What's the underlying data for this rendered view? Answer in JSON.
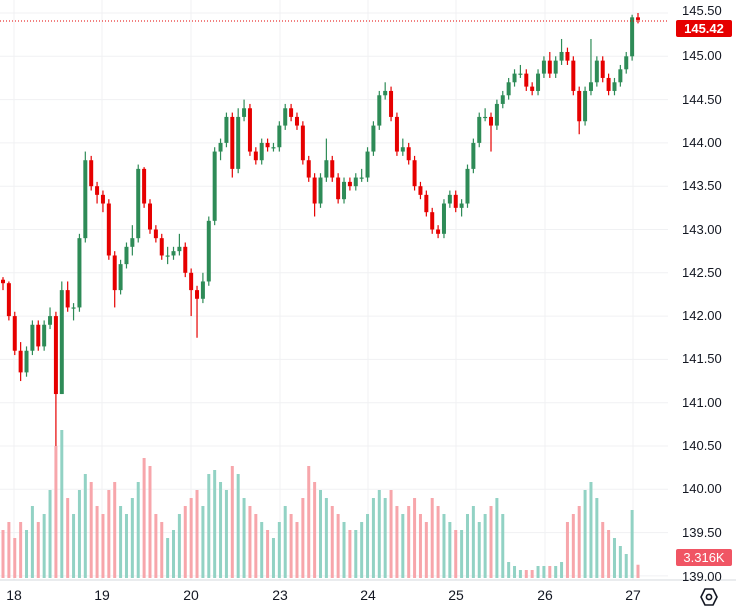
{
  "chart_data": {
    "type": "candlestick",
    "price_axis": {
      "ticks": [
        "145.50",
        "145.00",
        "144.50",
        "144.00",
        "143.50",
        "143.00",
        "142.50",
        "142.00",
        "141.50",
        "141.00",
        "140.50",
        "140.00",
        "139.50",
        "139.00"
      ],
      "ylim": [
        139.0,
        145.5
      ]
    },
    "date_axis": {
      "ticks": [
        "18",
        "19",
        "20",
        "23",
        "24",
        "25",
        "26",
        "27"
      ]
    },
    "last_price_label": "145.42",
    "last_volume_label": "3.316K",
    "grid": true,
    "colors": {
      "up": "#2e8b57",
      "down": "#e60000",
      "volume_up": "#92d2c4",
      "volume_down": "#f7a6ab",
      "price_badge": "#e60000",
      "volume_badge": "#f05564"
    },
    "candles_ohlcv": [
      [
        142.42,
        142.45,
        142.3,
        142.38,
        12
      ],
      [
        142.38,
        142.4,
        141.95,
        142.0,
        14
      ],
      [
        142.0,
        142.05,
        141.55,
        141.6,
        10
      ],
      [
        141.6,
        141.7,
        141.25,
        141.35,
        14
      ],
      [
        141.35,
        141.65,
        141.3,
        141.6,
        12
      ],
      [
        141.6,
        141.95,
        141.55,
        141.9,
        18
      ],
      [
        141.9,
        141.95,
        141.6,
        141.65,
        14
      ],
      [
        141.65,
        141.95,
        141.6,
        141.9,
        16
      ],
      [
        141.9,
        142.1,
        141.85,
        142.0,
        22
      ],
      [
        142.0,
        142.05,
        140.5,
        141.1,
        33
      ],
      [
        141.1,
        142.4,
        141.1,
        142.3,
        37
      ],
      [
        142.3,
        142.4,
        142.05,
        142.1,
        20
      ],
      [
        142.1,
        142.15,
        141.95,
        142.1,
        16
      ],
      [
        142.1,
        142.95,
        142.05,
        142.9,
        22
      ],
      [
        142.9,
        143.9,
        142.85,
        143.8,
        26
      ],
      [
        143.8,
        143.85,
        143.45,
        143.5,
        24
      ],
      [
        143.5,
        143.55,
        143.3,
        143.4,
        18
      ],
      [
        143.4,
        143.45,
        143.2,
        143.3,
        16
      ],
      [
        143.3,
        143.35,
        142.65,
        142.7,
        22
      ],
      [
        142.7,
        142.75,
        142.1,
        142.3,
        24
      ],
      [
        142.3,
        142.65,
        142.25,
        142.6,
        18
      ],
      [
        142.6,
        142.85,
        142.55,
        142.8,
        16
      ],
      [
        142.8,
        143.05,
        142.7,
        142.9,
        20
      ],
      [
        142.9,
        143.75,
        142.85,
        143.7,
        24
      ],
      [
        143.7,
        143.72,
        143.25,
        143.3,
        30
      ],
      [
        143.3,
        143.35,
        142.95,
        143.0,
        28
      ],
      [
        143.0,
        143.05,
        142.85,
        142.9,
        16
      ],
      [
        142.9,
        142.95,
        142.65,
        142.7,
        14
      ],
      [
        142.7,
        142.8,
        142.6,
        142.7,
        10
      ],
      [
        142.7,
        142.8,
        142.65,
        142.75,
        12
      ],
      [
        142.75,
        142.95,
        142.7,
        142.8,
        16
      ],
      [
        142.8,
        142.85,
        142.45,
        142.5,
        18
      ],
      [
        142.5,
        142.55,
        142.0,
        142.3,
        20
      ],
      [
        142.3,
        142.35,
        141.75,
        142.2,
        22
      ],
      [
        142.2,
        142.5,
        142.15,
        142.4,
        18
      ],
      [
        142.4,
        143.15,
        142.35,
        143.1,
        26
      ],
      [
        143.1,
        143.95,
        143.05,
        143.9,
        27
      ],
      [
        143.9,
        144.05,
        143.8,
        144.0,
        24
      ],
      [
        144.0,
        144.35,
        143.95,
        144.3,
        22
      ],
      [
        144.3,
        144.35,
        143.6,
        143.7,
        28
      ],
      [
        143.7,
        144.4,
        143.65,
        144.3,
        26
      ],
      [
        144.3,
        144.5,
        144.25,
        144.4,
        20
      ],
      [
        144.4,
        144.45,
        143.85,
        143.9,
        18
      ],
      [
        143.9,
        143.95,
        143.75,
        143.8,
        16
      ],
      [
        143.8,
        144.05,
        143.75,
        144.0,
        14
      ],
      [
        144.0,
        144.05,
        143.9,
        143.95,
        12
      ],
      [
        143.95,
        144.0,
        143.9,
        143.95,
        10
      ],
      [
        143.95,
        144.25,
        143.9,
        144.2,
        14
      ],
      [
        144.2,
        144.45,
        144.15,
        144.4,
        18
      ],
      [
        144.4,
        144.45,
        144.25,
        144.3,
        16
      ],
      [
        144.3,
        144.35,
        144.15,
        144.2,
        14
      ],
      [
        144.2,
        144.25,
        143.75,
        143.8,
        20
      ],
      [
        143.8,
        143.85,
        143.55,
        143.6,
        28
      ],
      [
        143.6,
        143.65,
        143.15,
        143.3,
        24
      ],
      [
        143.3,
        143.65,
        143.25,
        143.6,
        22
      ],
      [
        143.6,
        144.05,
        143.55,
        143.8,
        20
      ],
      [
        143.8,
        143.85,
        143.55,
        143.6,
        18
      ],
      [
        143.6,
        143.65,
        143.3,
        143.35,
        16
      ],
      [
        143.35,
        143.6,
        143.3,
        143.55,
        14
      ],
      [
        143.55,
        143.6,
        143.45,
        143.5,
        12
      ],
      [
        143.5,
        143.65,
        143.45,
        143.6,
        12
      ],
      [
        143.6,
        143.7,
        143.55,
        143.6,
        14
      ],
      [
        143.6,
        143.95,
        143.55,
        143.9,
        16
      ],
      [
        143.9,
        144.25,
        143.85,
        144.2,
        20
      ],
      [
        144.2,
        144.6,
        144.15,
        144.55,
        22
      ],
      [
        144.55,
        144.7,
        144.5,
        144.6,
        20
      ],
      [
        144.6,
        144.65,
        144.25,
        144.3,
        22
      ],
      [
        144.3,
        144.35,
        143.85,
        143.9,
        18
      ],
      [
        143.9,
        144.05,
        143.85,
        143.95,
        16
      ],
      [
        143.95,
        144.0,
        143.75,
        143.8,
        18
      ],
      [
        143.8,
        143.85,
        143.45,
        143.5,
        20
      ],
      [
        143.5,
        143.55,
        143.35,
        143.4,
        16
      ],
      [
        143.4,
        143.45,
        143.15,
        143.2,
        14
      ],
      [
        143.2,
        143.25,
        142.95,
        143.0,
        20
      ],
      [
        143.0,
        143.05,
        142.9,
        142.95,
        18
      ],
      [
        142.95,
        143.35,
        142.9,
        143.3,
        16
      ],
      [
        143.3,
        143.45,
        143.25,
        143.4,
        14
      ],
      [
        143.4,
        143.45,
        143.2,
        143.25,
        12
      ],
      [
        143.25,
        143.35,
        143.15,
        143.3,
        12
      ],
      [
        143.3,
        143.75,
        143.25,
        143.7,
        16
      ],
      [
        143.7,
        144.05,
        143.65,
        144.0,
        18
      ],
      [
        144.0,
        144.35,
        143.95,
        144.3,
        14
      ],
      [
        144.3,
        144.4,
        144.25,
        144.3,
        16
      ],
      [
        144.3,
        144.35,
        143.9,
        144.2,
        18
      ],
      [
        144.2,
        144.5,
        144.15,
        144.45,
        20
      ],
      [
        144.45,
        144.6,
        144.4,
        144.55,
        16
      ],
      [
        144.55,
        144.75,
        144.5,
        144.7,
        4
      ],
      [
        144.7,
        144.85,
        144.65,
        144.8,
        3
      ],
      [
        144.8,
        144.9,
        144.75,
        144.8,
        2
      ],
      [
        144.8,
        144.85,
        144.6,
        144.65,
        2
      ],
      [
        144.65,
        144.7,
        144.55,
        144.6,
        2
      ],
      [
        144.6,
        144.85,
        144.55,
        144.8,
        3
      ],
      [
        144.8,
        145.0,
        144.75,
        144.95,
        3
      ],
      [
        144.95,
        145.05,
        144.75,
        144.8,
        3
      ],
      [
        144.8,
        145.0,
        144.75,
        144.95,
        3
      ],
      [
        144.95,
        145.2,
        144.9,
        145.05,
        4
      ],
      [
        145.05,
        145.1,
        144.9,
        144.95,
        14
      ],
      [
        144.95,
        145.0,
        144.55,
        144.6,
        16
      ],
      [
        144.6,
        144.65,
        144.1,
        144.25,
        18
      ],
      [
        144.25,
        144.65,
        144.2,
        144.6,
        22
      ],
      [
        144.6,
        145.2,
        144.55,
        144.7,
        24
      ],
      [
        144.7,
        145.0,
        144.65,
        144.95,
        20
      ],
      [
        144.95,
        145.0,
        144.7,
        144.75,
        14
      ],
      [
        144.75,
        144.8,
        144.55,
        144.6,
        12
      ],
      [
        144.6,
        144.75,
        144.55,
        144.7,
        10
      ],
      [
        144.7,
        144.9,
        144.65,
        144.85,
        8
      ],
      [
        144.85,
        145.05,
        144.8,
        145.0,
        6
      ],
      [
        145.0,
        145.48,
        144.95,
        145.45,
        17
      ],
      [
        145.45,
        145.5,
        145.38,
        145.42,
        3.316
      ]
    ]
  }
}
